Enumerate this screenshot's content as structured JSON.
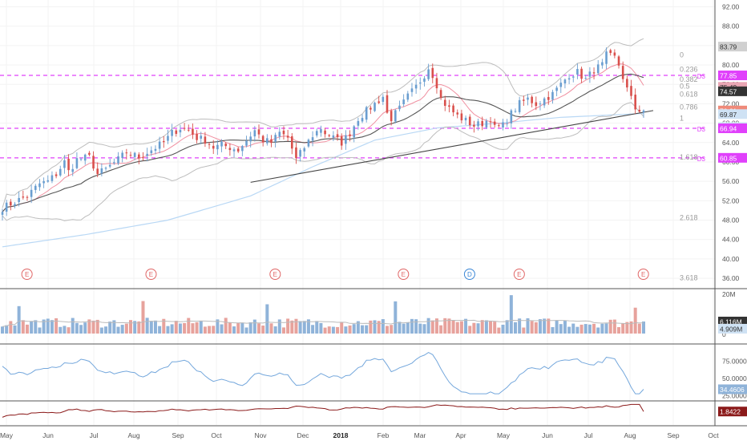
{
  "chart_data": {
    "type": "candlestick",
    "x_axis": {
      "labels": [
        "May",
        "Jun",
        "Jul",
        "Aug",
        "Sep",
        "Oct",
        "Nov",
        "Dec",
        "2018",
        "Feb",
        "Mar",
        "Apr",
        "May",
        "Jun",
        "Jul",
        "Aug",
        "Sep",
        "Oct"
      ],
      "bold_label": "2018"
    },
    "price_pane": {
      "y_ticks": [
        36.0,
        40.0,
        44.0,
        48.0,
        52.0,
        56.0,
        60.0,
        64.0,
        68.0,
        72.0,
        76.0,
        80.0,
        84.0,
        88.0,
        92.0
      ],
      "y_tick_labels": [
        "36.00",
        "40.00",
        "44.00",
        "48.00",
        "52.00",
        "56.00",
        "60.00",
        "64.00",
        "68.00",
        "72.00",
        "76.00",
        "80.00",
        "84.00",
        "88.00",
        "92.00"
      ],
      "ylim": [
        34.2,
        93.4
      ],
      "close_path": [
        [
          0,
          50.5
        ],
        [
          3,
          51.8
        ],
        [
          6,
          53.0
        ],
        [
          9,
          55.5
        ],
        [
          11,
          56.0
        ],
        [
          13,
          57.5
        ],
        [
          15,
          60.0
        ],
        [
          16,
          58.0
        ],
        [
          18,
          60.5
        ],
        [
          21,
          61.0
        ],
        [
          23,
          57.5
        ],
        [
          25,
          58.5
        ],
        [
          28,
          60.5
        ],
        [
          30,
          62.0
        ],
        [
          33,
          61.0
        ],
        [
          36,
          62.5
        ],
        [
          39,
          64.0
        ],
        [
          41,
          66.0
        ],
        [
          43,
          67.0
        ],
        [
          45,
          66.5
        ],
        [
          47,
          65.0
        ],
        [
          49,
          64.5
        ],
        [
          51,
          63.0
        ],
        [
          53,
          63.5
        ],
        [
          55,
          63.0
        ],
        [
          57,
          62.5
        ],
        [
          59,
          64.5
        ],
        [
          61,
          66.5
        ],
        [
          63,
          64.5
        ],
        [
          65,
          64.0
        ],
        [
          67,
          66.0
        ],
        [
          69,
          65.0
        ],
        [
          71,
          60.5
        ],
        [
          73,
          63.0
        ],
        [
          75,
          65.5
        ],
        [
          77,
          67.0
        ],
        [
          78,
          66.0
        ],
        [
          80,
          65.0
        ],
        [
          82,
          64.0
        ],
        [
          84,
          66.0
        ],
        [
          86,
          69.0
        ],
        [
          88,
          70.5
        ],
        [
          90,
          72.0
        ],
        [
          92,
          73.5
        ],
        [
          93,
          70.0
        ],
        [
          94,
          69.0
        ],
        [
          96,
          71.0
        ],
        [
          98,
          73.5
        ],
        [
          100,
          75.5
        ],
        [
          102,
          78.0
        ],
        [
          103,
          79.5
        ],
        [
          104,
          78.0
        ],
        [
          105,
          76.0
        ],
        [
          106,
          73.0
        ],
        [
          108,
          71.0
        ],
        [
          110,
          69.5
        ],
        [
          112,
          68.5
        ],
        [
          114,
          67.5
        ],
        [
          116,
          68.0
        ],
        [
          118,
          69.0
        ],
        [
          119,
          67.0
        ],
        [
          121,
          67.5
        ],
        [
          123,
          70.0
        ],
        [
          125,
          72.0
        ],
        [
          127,
          73.0
        ],
        [
          129,
          72.0
        ],
        [
          131,
          73.0
        ],
        [
          133,
          74.0
        ],
        [
          135,
          76.0
        ],
        [
          137,
          78.0
        ],
        [
          139,
          78.5
        ],
        [
          141,
          77.0
        ],
        [
          143,
          79.0
        ],
        [
          145,
          80.0
        ],
        [
          146,
          82.0
        ],
        [
          148,
          81.5
        ],
        [
          149,
          80.0
        ],
        [
          150,
          77.5
        ],
        [
          151,
          75.0
        ],
        [
          152,
          73.0
        ],
        [
          153,
          71.0
        ],
        [
          155,
          70.61
        ]
      ],
      "sma_long_path": [
        [
          0,
          42.5
        ],
        [
          20,
          45.0
        ],
        [
          40,
          48.0
        ],
        [
          60,
          53.0
        ],
        [
          75,
          59.0
        ],
        [
          90,
          64.5
        ],
        [
          105,
          67.0
        ],
        [
          120,
          68.0
        ],
        [
          135,
          69.2
        ],
        [
          155,
          70.0
        ]
      ],
      "trendline": [
        [
          60,
          55.8
        ],
        [
          155,
          70.2
        ]
      ],
      "horizontal_levels": [
        {
          "value": 77.85,
          "label": "D3"
        },
        {
          "value": 66.94,
          "label": "D3"
        },
        {
          "value": 60.85,
          "label": "D3"
        }
      ],
      "fibonacci": [
        {
          "ratio": "0",
          "value": 82.1
        },
        {
          "ratio": "0.236",
          "value": 79.1
        },
        {
          "ratio": "0.382",
          "value": 77.0
        },
        {
          "ratio": "0.5",
          "value": 75.6
        },
        {
          "ratio": "0.618",
          "value": 74.0
        },
        {
          "ratio": "0.786",
          "value": 71.3
        },
        {
          "ratio": "1",
          "value": 69.0
        },
        {
          "ratio": "1.618",
          "value": 61.0
        },
        {
          "ratio": "2.618",
          "value": 48.5
        },
        {
          "ratio": "3.618",
          "value": 36.1
        }
      ],
      "price_badges": [
        {
          "value": 83.79,
          "label": "83.79"
        },
        {
          "value": 77.85,
          "label": "77.85"
        },
        {
          "value": 75.49,
          "label": "75.49"
        },
        {
          "value": 74.57,
          "label": "74.57"
        },
        {
          "value": 70.61,
          "label": "70.61"
        },
        {
          "value": 69.87,
          "label": "69.87"
        },
        {
          "value": 67.2,
          "label": "67.20"
        },
        {
          "value": 66.94,
          "label": "66.94"
        },
        {
          "value": 60.85,
          "label": "60.85"
        }
      ],
      "events": [
        {
          "x": 4,
          "label": "E"
        },
        {
          "x": 34,
          "label": "E"
        },
        {
          "x": 64,
          "label": "E"
        },
        {
          "x": 95,
          "label": "E"
        },
        {
          "x": 111,
          "label": "D"
        },
        {
          "x": 123,
          "label": "E"
        },
        {
          "x": 153,
          "label": "E"
        }
      ]
    },
    "volume_pane": {
      "y_tick_labels": [
        "20M",
        "0"
      ],
      "badges": [
        {
          "label": "6.116M"
        },
        {
          "label": "4.909M"
        }
      ]
    },
    "rsi_pane": {
      "y_tick_labels": [
        "75.0000",
        "50.0000",
        "25.0000"
      ],
      "badge": "34.4606"
    },
    "atr_pane": {
      "badge": "1.8422"
    },
    "colors": {
      "up": "#6a9ed0",
      "down": "#d9504c",
      "magenta": "#e040fb",
      "rsi": "#74a7dc",
      "atr": "#8b1a1a",
      "ma_dark": "#555555",
      "ma_pink": "#f08fa0",
      "long_ma": "#b9d8f5",
      "bands": "#bdbdbd"
    }
  }
}
